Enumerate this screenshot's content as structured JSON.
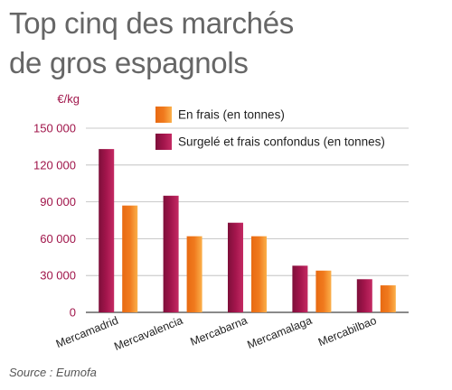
{
  "title": {
    "line1": "Top cinq des marchés",
    "line2": "de gros espagnols"
  },
  "source": "Source : Eumofa",
  "colors": {
    "fresh": "#f07a1e",
    "frozen": "#a3154c",
    "axis_text": "#a0154a",
    "gridline": "#b9b9b9"
  },
  "chart_data": {
    "type": "bar",
    "title": "Top cinq des marchés de gros espagnols",
    "ylabel": "€/kg",
    "xlabel": "",
    "ylim": [
      0,
      150000
    ],
    "yticks": [
      0,
      30000,
      60000,
      90000,
      120000,
      150000
    ],
    "ytick_labels": [
      "0",
      "30 000",
      "60 000",
      "90 000",
      "120 000",
      "150 000"
    ],
    "grid": true,
    "legend_position": "top",
    "categories": [
      "Mercamadrid",
      "Mercavalencia",
      "Mercabarna",
      "Mercamalaga",
      "Mercabilbao"
    ],
    "series": [
      {
        "name": "Surgelé et frais confondus (en tonnes)",
        "values": [
          133000,
          95000,
          73000,
          38000,
          27000
        ]
      },
      {
        "name": "En frais (en tonnes)",
        "values": [
          87000,
          62000,
          62000,
          34000,
          22000
        ]
      }
    ]
  }
}
